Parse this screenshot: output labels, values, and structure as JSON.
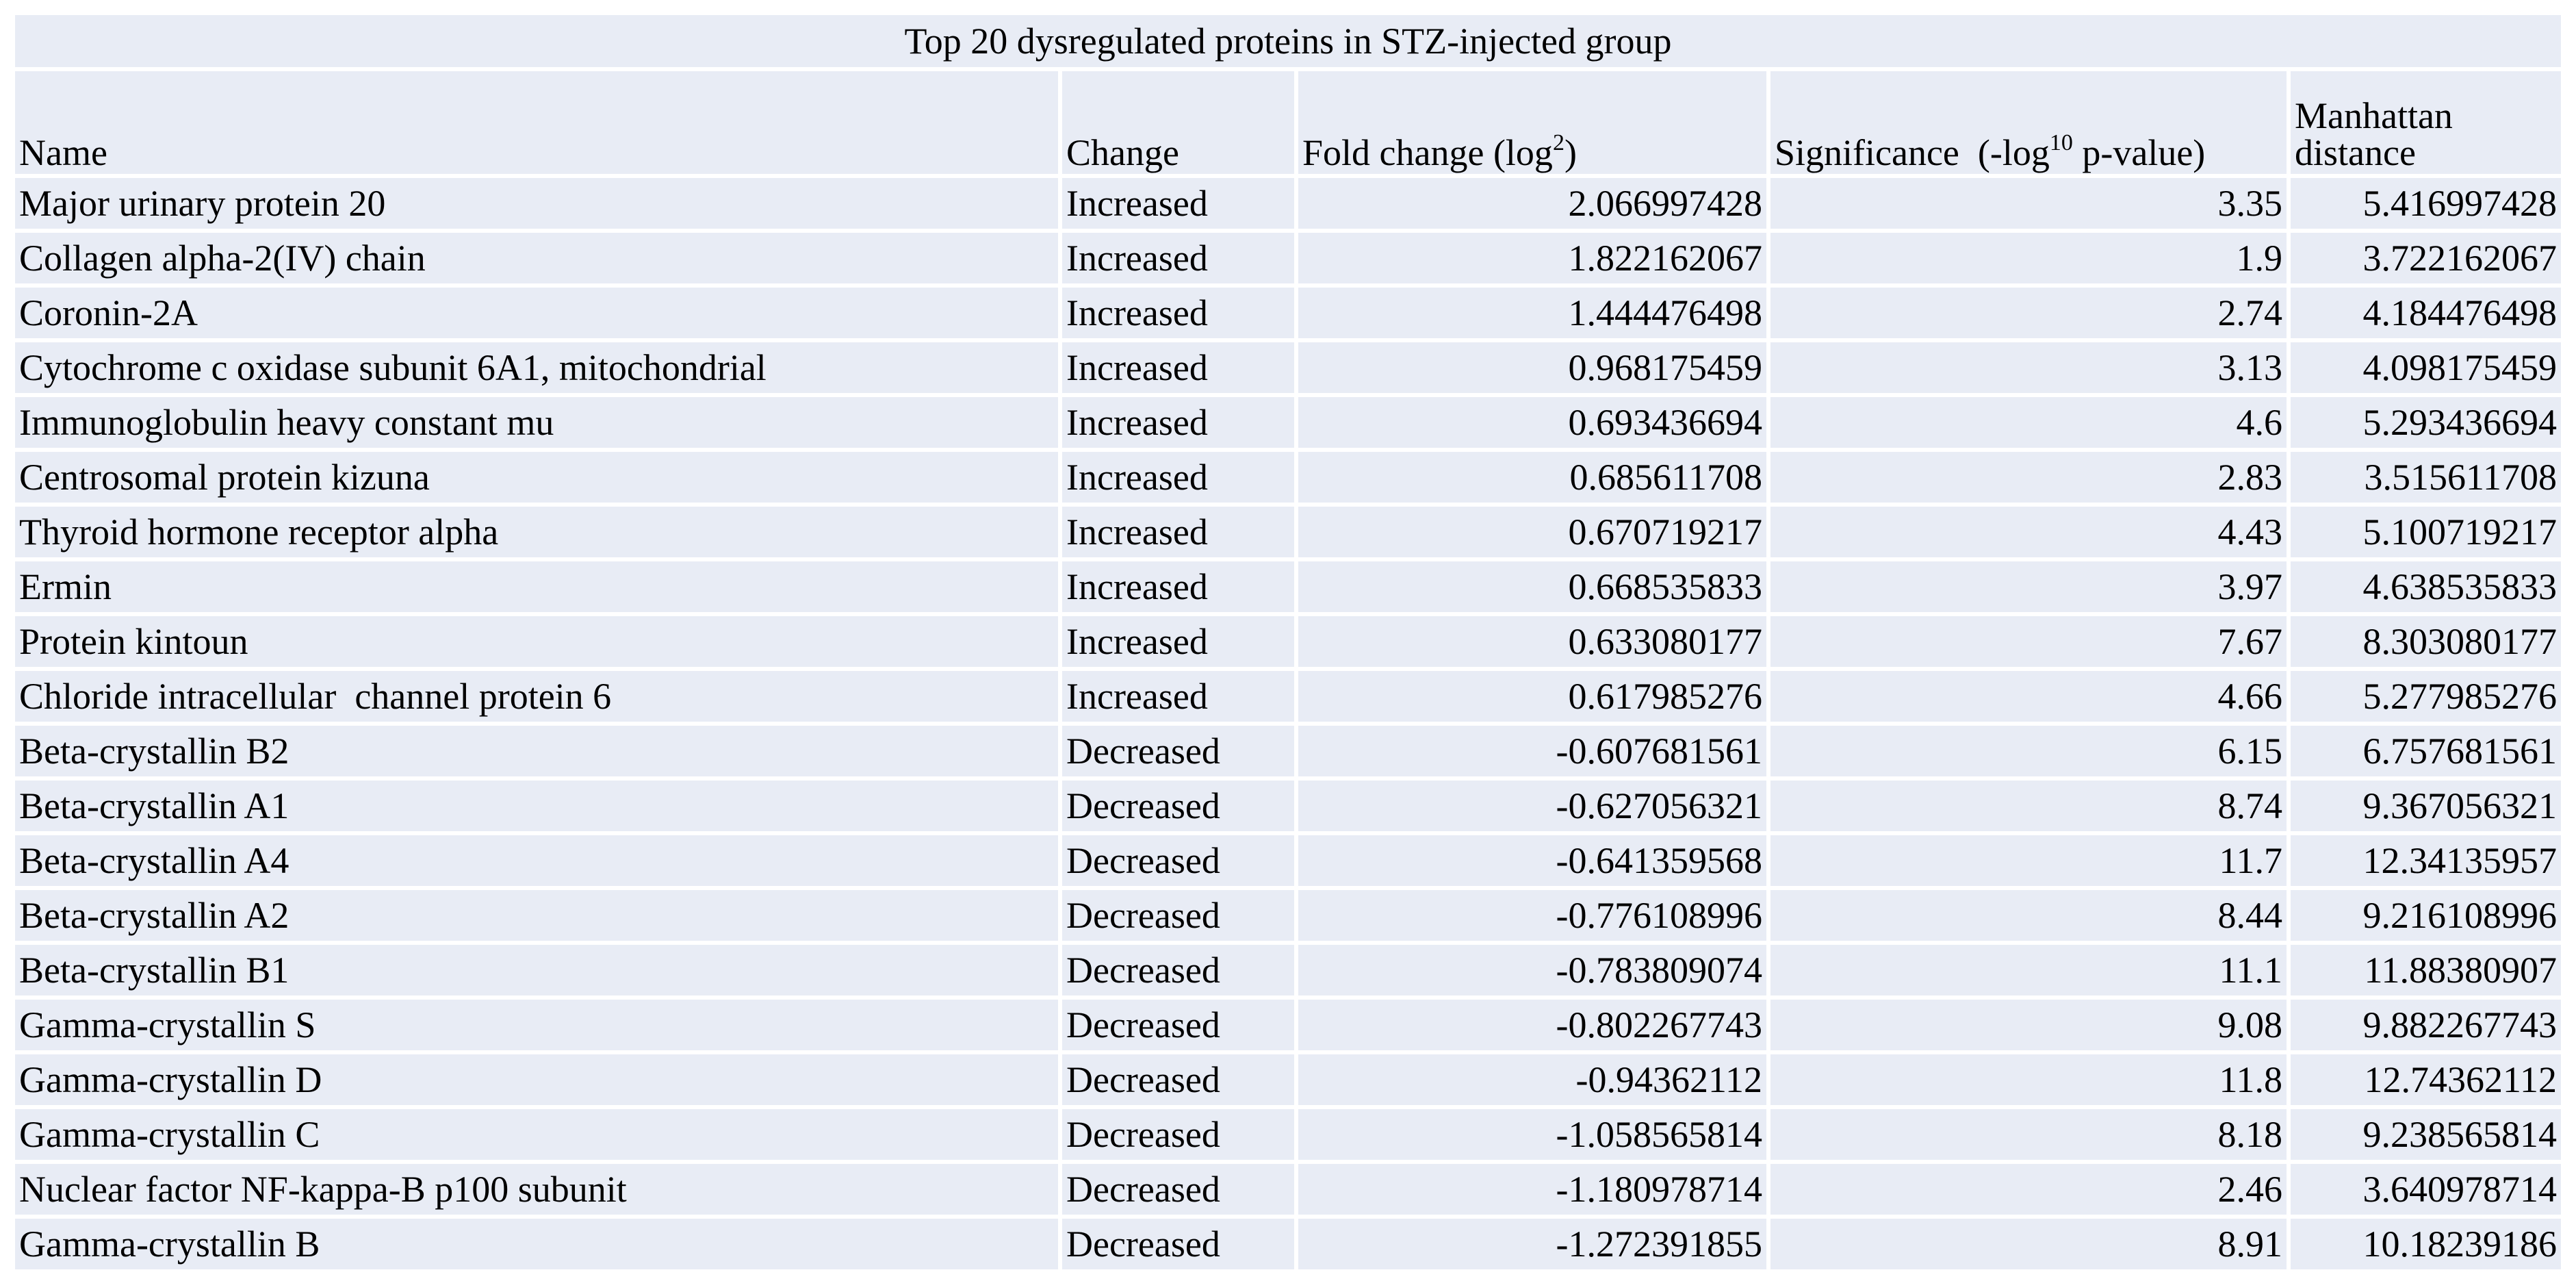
{
  "title": "Top 20 dysregulated proteins in STZ-injected group",
  "headers": {
    "name": "Name",
    "change": "Change",
    "fold_prefix": "Fold change (log",
    "fold_sup": "2",
    "fold_suffix": ")",
    "sig_prefix": "Significance  (-log",
    "sig_sup": "10",
    "sig_suffix": " p-value)",
    "manhattan": "Manhattan distance"
  },
  "rows": [
    {
      "name": "Major urinary protein 20",
      "change": "Increased",
      "fold": "2.066997428",
      "sig": "3.35",
      "manhattan": "5.416997428"
    },
    {
      "name": "Collagen alpha-2(IV) chain",
      "change": "Increased",
      "fold": "1.822162067",
      "sig": "1.9",
      "manhattan": "3.722162067"
    },
    {
      "name": "Coronin-2A",
      "change": "Increased",
      "fold": "1.444476498",
      "sig": "2.74",
      "manhattan": "4.184476498"
    },
    {
      "name": "Cytochrome c oxidase subunit 6A1, mitochondrial",
      "change": "Increased",
      "fold": "0.968175459",
      "sig": "3.13",
      "manhattan": "4.098175459"
    },
    {
      "name": "Immunoglobulin heavy constant mu",
      "change": "Increased",
      "fold": "0.693436694",
      "sig": "4.6",
      "manhattan": "5.293436694"
    },
    {
      "name": "Centrosomal protein kizuna",
      "change": "Increased",
      "fold": "0.685611708",
      "sig": "2.83",
      "manhattan": "3.515611708"
    },
    {
      "name": "Thyroid hormone receptor alpha",
      "change": "Increased",
      "fold": "0.670719217",
      "sig": "4.43",
      "manhattan": "5.100719217"
    },
    {
      "name": "Ermin",
      "change": "Increased",
      "fold": "0.668535833",
      "sig": "3.97",
      "manhattan": "4.638535833"
    },
    {
      "name": "Protein kintoun",
      "change": "Increased",
      "fold": "0.633080177",
      "sig": "7.67",
      "manhattan": "8.303080177"
    },
    {
      "name": "Chloride intracellular  channel protein 6",
      "change": "Increased",
      "fold": "0.617985276",
      "sig": "4.66",
      "manhattan": "5.277985276"
    },
    {
      "name": "Beta-crystallin B2",
      "change": "Decreased",
      "fold": "-0.607681561",
      "sig": "6.15",
      "manhattan": "6.757681561"
    },
    {
      "name": "Beta-crystallin A1",
      "change": "Decreased",
      "fold": "-0.627056321",
      "sig": "8.74",
      "manhattan": "9.367056321"
    },
    {
      "name": "Beta-crystallin A4",
      "change": "Decreased",
      "fold": "-0.641359568",
      "sig": "11.7",
      "manhattan": "12.34135957"
    },
    {
      "name": "Beta-crystallin A2",
      "change": "Decreased",
      "fold": "-0.776108996",
      "sig": "8.44",
      "manhattan": "9.216108996"
    },
    {
      "name": "Beta-crystallin B1",
      "change": "Decreased",
      "fold": "-0.783809074",
      "sig": "11.1",
      "manhattan": "11.88380907"
    },
    {
      "name": "Gamma-crystallin S",
      "change": "Decreased",
      "fold": "-0.802267743",
      "sig": "9.08",
      "manhattan": "9.882267743"
    },
    {
      "name": "Gamma-crystallin D",
      "change": "Decreased",
      "fold": "-0.94362112",
      "sig": "11.8",
      "manhattan": "12.74362112"
    },
    {
      "name": "Gamma-crystallin C",
      "change": "Decreased",
      "fold": "-1.058565814",
      "sig": "8.18",
      "manhattan": "9.238565814"
    },
    {
      "name": "Nuclear factor NF-kappa-B p100 subunit",
      "change": "Decreased",
      "fold": "-1.180978714",
      "sig": "2.46",
      "manhattan": "3.640978714"
    },
    {
      "name": "Gamma-crystallin B",
      "change": "Decreased",
      "fold": "-1.272391855",
      "sig": "8.91",
      "manhattan": "10.18239186"
    }
  ]
}
